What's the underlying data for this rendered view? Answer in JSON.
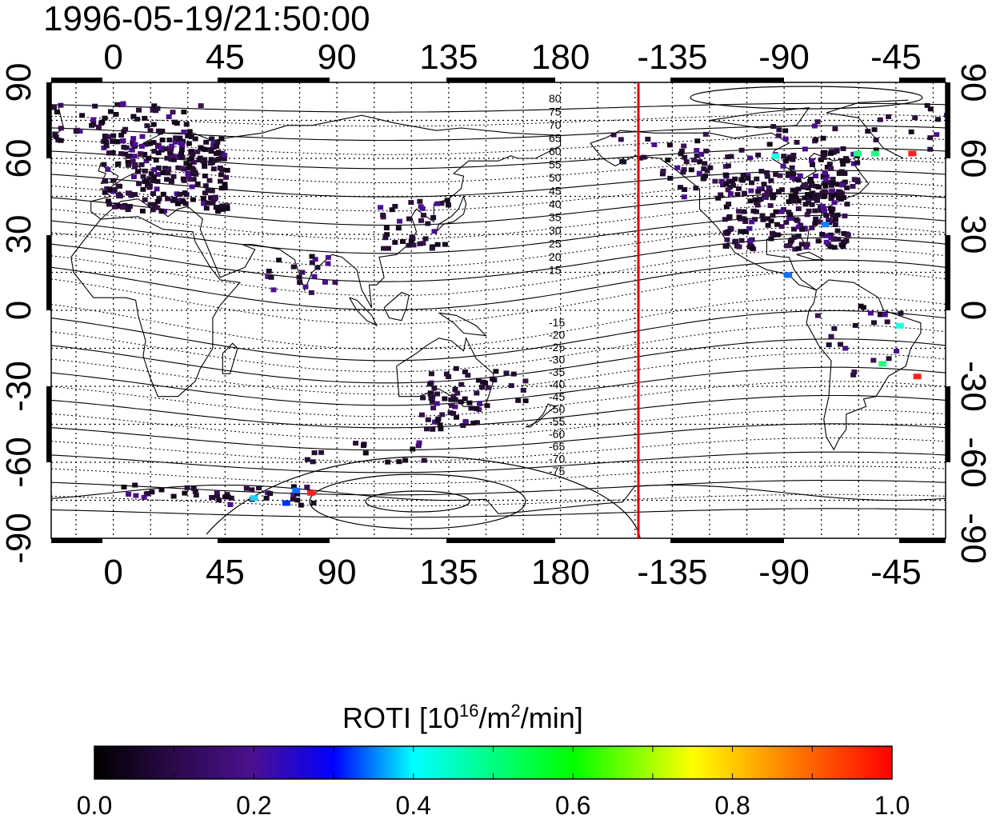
{
  "map": {
    "timestamp": "1996-05-19/21:50:00",
    "top_lon_ticks": [
      "0",
      "45",
      "90",
      "135",
      "180",
      "-135",
      "-90",
      "-45"
    ],
    "bottom_lon_ticks": [
      "0",
      "45",
      "90",
      "135",
      "180",
      "-135",
      "-90",
      "-45"
    ],
    "left_lat_ticks": [
      "90",
      "60",
      "30",
      "0",
      "-30",
      "-60",
      "-90"
    ],
    "right_lat_ticks": [
      "90",
      "60",
      "30",
      "0",
      "-30",
      "-60",
      "-90"
    ],
    "contour_labels_north": [
      "80",
      "75",
      "70",
      "65",
      "60",
      "55",
      "50",
      "45",
      "40",
      "35",
      "30",
      "25",
      "20",
      "15"
    ],
    "contour_labels_south": [
      "-15",
      "-20",
      "-25",
      "-30",
      "-35",
      "-40",
      "-45",
      "-50",
      "-55",
      "-60",
      "-65",
      "-70",
      "-75"
    ],
    "terminator_color": "#e00000",
    "projection_center_lon": 120
  },
  "colorbar": {
    "title_prefix": "ROTI  [10",
    "title_sup1": "16",
    "title_mid": "/m",
    "title_sup2": "2",
    "title_suffix": "/min]",
    "tick_labels": [
      "0.0",
      "0.2",
      "0.4",
      "0.6",
      "0.8",
      "1.0"
    ],
    "range": [
      0.0,
      1.0
    ],
    "colormap": [
      "#000000",
      "#2a0a4a",
      "#4b1090",
      "#0000ff",
      "#00ffff",
      "#00ff00",
      "#ffff00",
      "#ff8000",
      "#ff0000"
    ]
  }
}
